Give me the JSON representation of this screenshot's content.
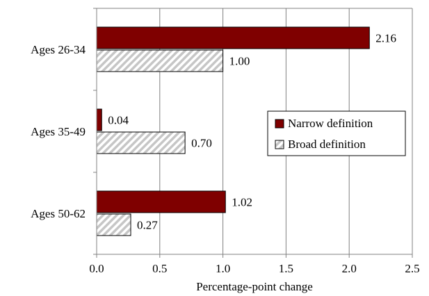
{
  "chart_data": {
    "type": "bar",
    "orientation": "horizontal",
    "categories": [
      "Ages 26-34",
      "Ages 35-49",
      "Ages 50-62"
    ],
    "series": [
      {
        "name": "Narrow definition",
        "values": [
          2.16,
          0.04,
          1.02
        ],
        "labels": [
          "2.16",
          "0.04",
          "1.02"
        ],
        "color": "#7f0000",
        "pattern": "solid"
      },
      {
        "name": "Broad definition",
        "values": [
          1.0,
          0.7,
          0.27
        ],
        "labels": [
          "1.00",
          "0.70",
          "0.27"
        ],
        "color": "#bfbfbf",
        "pattern": "diagonal-hatch"
      }
    ],
    "x_ticks": [
      "0.0",
      "0.5",
      "1.0",
      "1.5",
      "2.0",
      "2.5"
    ],
    "xlim": [
      0,
      2.5
    ],
    "xlabel": "Percentage-point change",
    "ylabel": "",
    "title": "",
    "grid": "vertical",
    "legend_position": "right-center"
  }
}
